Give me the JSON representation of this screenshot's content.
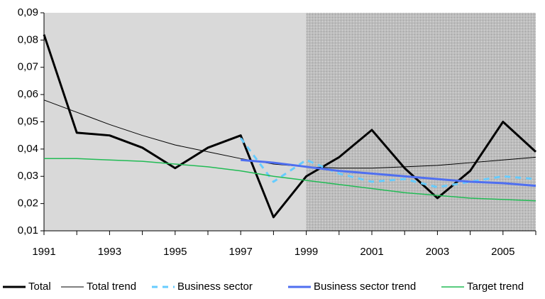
{
  "chart_data": {
    "type": "line",
    "x": [
      1991,
      1992,
      1993,
      1994,
      1995,
      1996,
      1997,
      1998,
      1999,
      2000,
      2001,
      2002,
      2003,
      2004,
      2005,
      2006
    ],
    "xlim": [
      1991,
      2006
    ],
    "xticks": [
      1991,
      1993,
      1995,
      1997,
      1999,
      2001,
      2003,
      2005
    ],
    "ylim": [
      0.01,
      0.09
    ],
    "yticks": [
      {
        "value": 0.01,
        "label": "0,01"
      },
      {
        "value": 0.02,
        "label": "0,02"
      },
      {
        "value": 0.03,
        "label": "0,03"
      },
      {
        "value": 0.04,
        "label": "0,04"
      },
      {
        "value": 0.05,
        "label": "0,05"
      },
      {
        "value": 0.06,
        "label": "0,06"
      },
      {
        "value": 0.07,
        "label": "0,07"
      },
      {
        "value": 0.08,
        "label": "0,08"
      },
      {
        "value": 0.09,
        "label": "0,09"
      }
    ],
    "shaded_region": [
      1999,
      2006
    ],
    "legend": "bottom",
    "series": [
      {
        "name": "Total",
        "color": "#000000",
        "line_width": 3,
        "dashed": false,
        "values": [
          0.082,
          0.046,
          0.045,
          0.0405,
          0.033,
          0.0405,
          0.045,
          0.015,
          0.03,
          0.037,
          0.047,
          0.033,
          0.022,
          0.032,
          0.05,
          0.039
        ]
      },
      {
        "name": "Total trend",
        "color": "#000000",
        "line_width": 1,
        "dashed": false,
        "values": [
          0.058,
          0.0535,
          0.049,
          0.045,
          0.0415,
          0.039,
          0.0365,
          0.0345,
          0.0335,
          0.033,
          0.033,
          0.0335,
          0.034,
          0.035,
          0.036,
          0.037
        ]
      },
      {
        "name": "Business sector",
        "color": "#66ccff",
        "line_width": 3,
        "dashed": true,
        "values": [
          null,
          null,
          null,
          null,
          null,
          null,
          0.044,
          0.028,
          0.036,
          0.031,
          0.028,
          0.029,
          0.026,
          0.028,
          0.03,
          0.029
        ]
      },
      {
        "name": "Business sector trend",
        "color": "#4f6ff0",
        "line_width": 3,
        "dashed": false,
        "values": [
          null,
          null,
          null,
          null,
          null,
          null,
          0.036,
          0.035,
          0.0335,
          0.032,
          0.031,
          0.03,
          0.029,
          0.028,
          0.0275,
          0.0265
        ]
      },
      {
        "name": "Target trend",
        "color": "#22bb55",
        "line_width": 1.5,
        "dashed": false,
        "values": [
          0.0365,
          0.0365,
          0.036,
          0.0355,
          0.0345,
          0.0335,
          0.032,
          0.03,
          0.0285,
          0.027,
          0.0255,
          0.024,
          0.023,
          0.022,
          0.0215,
          0.021
        ]
      }
    ]
  }
}
